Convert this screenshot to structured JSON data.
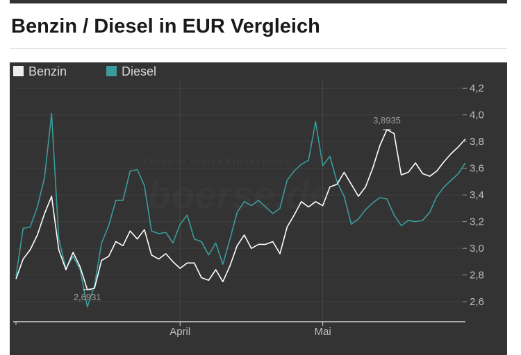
{
  "page": {
    "title": "Benzin / Diesel in EUR Vergleich"
  },
  "chart_data": {
    "type": "line",
    "title": "Benzin / Diesel in EUR Vergleich",
    "xlabel": "",
    "ylabel": "",
    "ylim": [
      2.45,
      4.3
    ],
    "y_ticks": [
      2.6,
      2.8,
      3.0,
      3.2,
      3.4,
      3.6,
      3.8,
      4.0,
      4.2
    ],
    "y_tick_labels": [
      "2,6",
      "2,8",
      "3,0",
      "3,2",
      "3,4",
      "3,6",
      "3,8",
      "4,0",
      "4,2"
    ],
    "x_ticks": [
      {
        "label": "April",
        "index": 23
      },
      {
        "label": "Mai",
        "index": 43
      }
    ],
    "legend": {
      "placement": "top-left"
    },
    "grid": true,
    "background_color": "#333333",
    "series": [
      {
        "name": "Benzin",
        "color": "#ffffff",
        "values": [
          2.77,
          2.92,
          2.99,
          3.1,
          3.26,
          3.39,
          2.99,
          2.84,
          2.97,
          2.86,
          2.69,
          2.7,
          2.91,
          2.94,
          3.05,
          3.02,
          3.13,
          3.07,
          3.14,
          2.95,
          2.92,
          2.96,
          2.9,
          2.85,
          2.89,
          2.89,
          2.78,
          2.76,
          2.84,
          2.75,
          2.87,
          3.02,
          3.1,
          3.0,
          3.03,
          3.03,
          3.05,
          2.96,
          3.16,
          3.25,
          3.35,
          3.31,
          3.35,
          3.32,
          3.46,
          3.48,
          3.57,
          3.48,
          3.39,
          3.46,
          3.6,
          3.77,
          3.89,
          3.86,
          3.55,
          3.57,
          3.64,
          3.56,
          3.54,
          3.58,
          3.65,
          3.71,
          3.76,
          3.82
        ]
      },
      {
        "name": "Diesel",
        "color": "#3a9c9a",
        "values": [
          2.79,
          3.15,
          3.16,
          3.31,
          3.53,
          4.01,
          3.07,
          2.85,
          2.94,
          2.84,
          2.56,
          2.72,
          3.04,
          3.17,
          3.36,
          3.36,
          3.58,
          3.59,
          3.47,
          3.13,
          3.11,
          3.12,
          3.04,
          3.18,
          3.25,
          3.07,
          3.05,
          2.95,
          3.04,
          2.88,
          3.07,
          3.27,
          3.35,
          3.32,
          3.36,
          3.31,
          3.26,
          3.3,
          3.51,
          3.58,
          3.63,
          3.66,
          3.95,
          3.62,
          3.69,
          3.5,
          3.39,
          3.18,
          3.22,
          3.29,
          3.34,
          3.38,
          3.37,
          3.25,
          3.17,
          3.21,
          3.2,
          3.21,
          3.27,
          3.39,
          3.46,
          3.51,
          3.56,
          3.64
        ]
      }
    ],
    "annotations": [
      {
        "series": "Benzin",
        "index": 52,
        "label": "3,8935"
      },
      {
        "series": "Benzin",
        "index": 10,
        "label": "2,6931"
      }
    ],
    "watermark": {
      "line1": "Europas erstes Finanzportal",
      "line2": "boerse.de"
    }
  }
}
